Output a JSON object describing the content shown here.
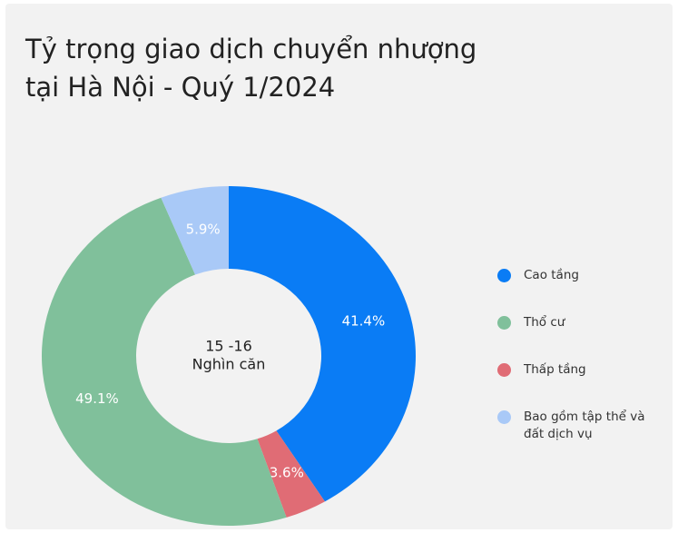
{
  "chart_data": {
    "type": "donut",
    "title": [
      "Tỷ trọng giao dịch chuyển nhượng",
      "tại Hà Nội - Quý 1/2024"
    ],
    "center_text": [
      "15 -16",
      "Nghìn căn"
    ],
    "categories": [
      "Cao tầng",
      "Thấp tầng",
      "Thổ cư",
      "Bao gồm tập thể và đất dịch vụ"
    ],
    "values": [
      41.4,
      3.6,
      49.1,
      5.9
    ],
    "value_labels": [
      "41.4%",
      "3.6%",
      "49.1%",
      "5.9%"
    ],
    "colors": [
      "#0a7cf5",
      "#e06c75",
      "#80c09b",
      "#a9c9f7"
    ],
    "legend_order": [
      0,
      2,
      1,
      3
    ],
    "legend": "right"
  }
}
